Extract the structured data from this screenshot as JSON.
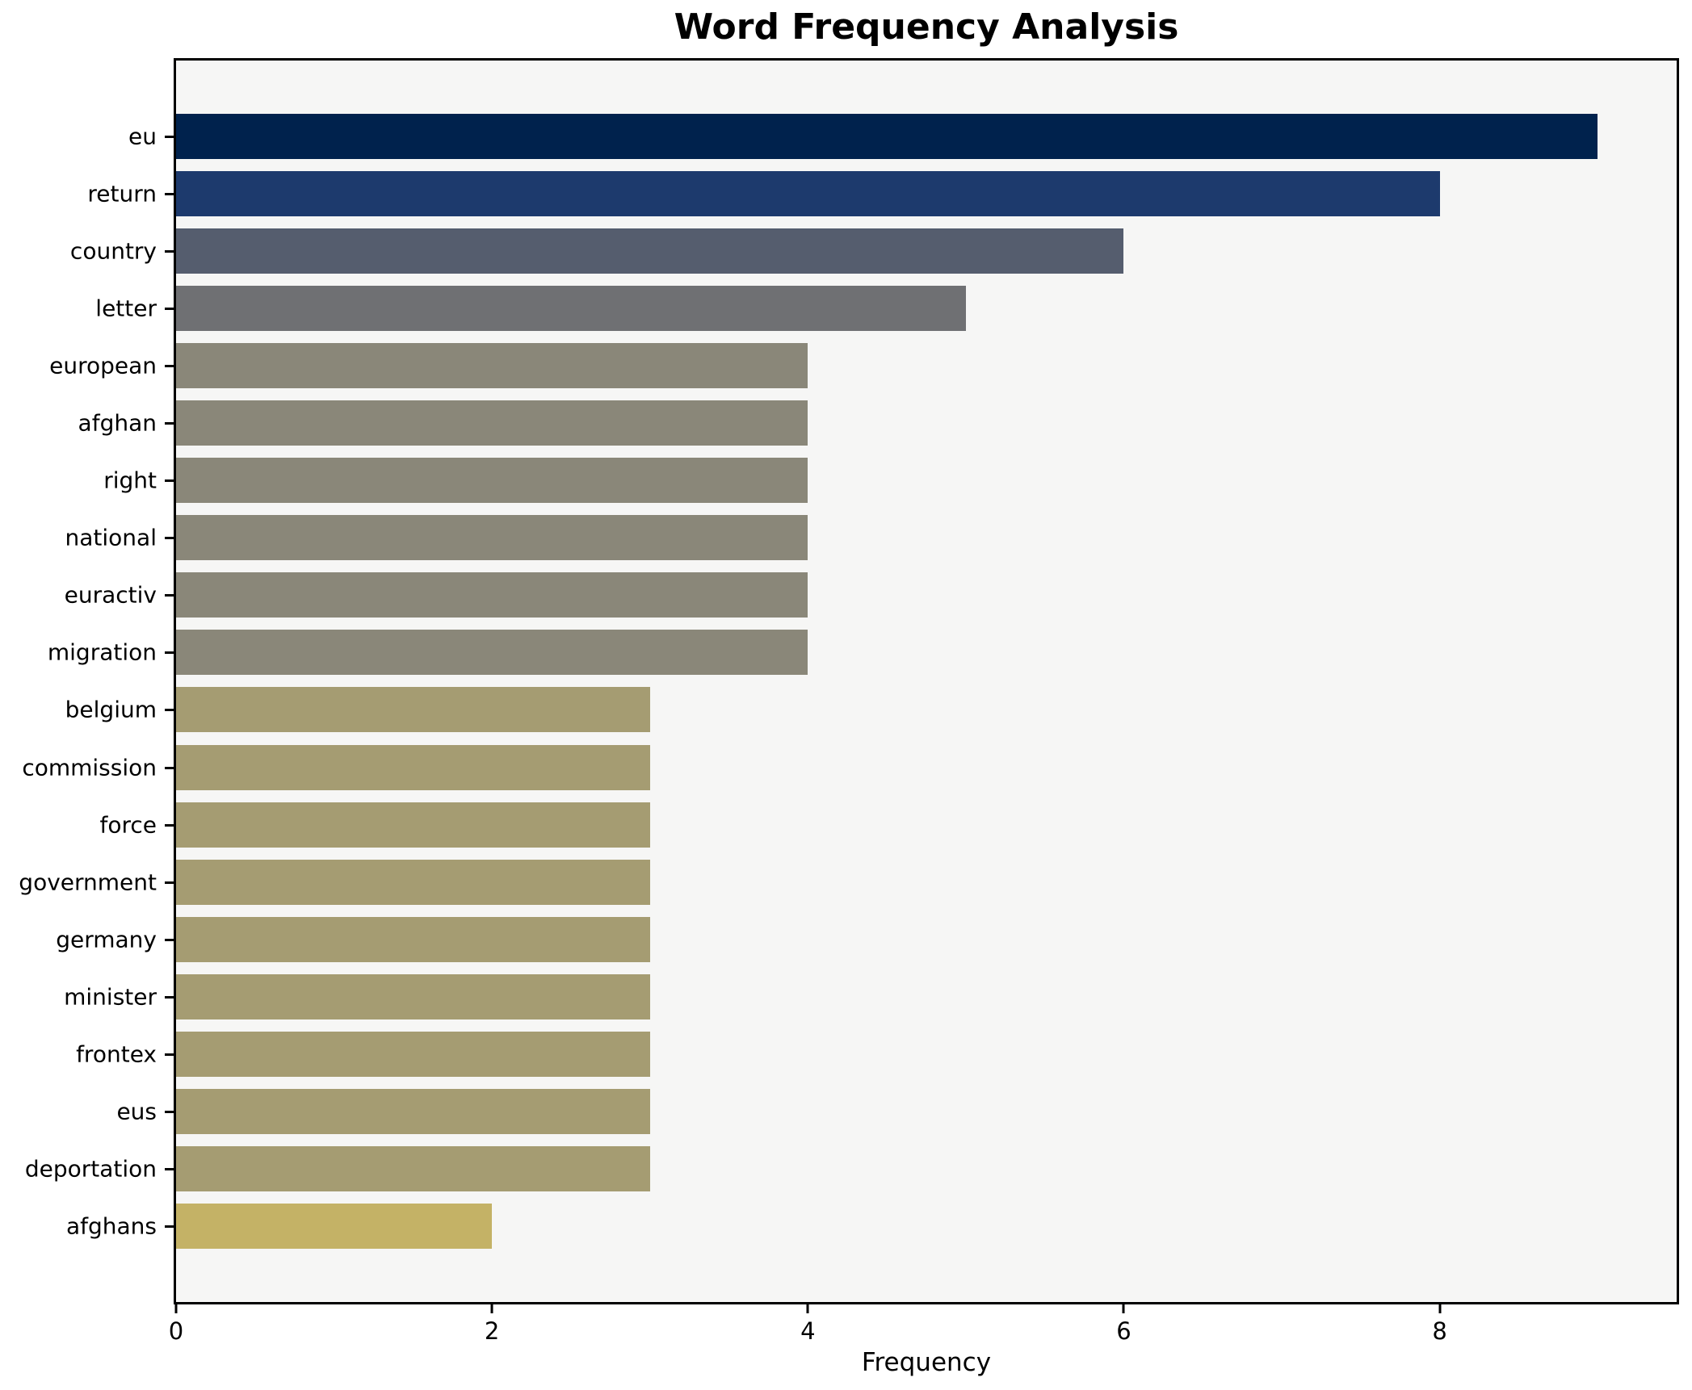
{
  "chart_data": {
    "type": "bar",
    "orientation": "horizontal",
    "title": "Word Frequency Analysis",
    "xlabel": "Frequency",
    "ylabel": "",
    "categories": [
      "eu",
      "return",
      "country",
      "letter",
      "european",
      "afghan",
      "right",
      "national",
      "euractiv",
      "migration",
      "belgium",
      "commission",
      "force",
      "government",
      "germany",
      "minister",
      "frontex",
      "eus",
      "deportation",
      "afghans"
    ],
    "values": [
      9,
      8,
      6,
      5,
      4,
      4,
      4,
      4,
      4,
      4,
      3,
      3,
      3,
      3,
      3,
      3,
      3,
      3,
      3,
      2
    ],
    "bar_colors": [
      "#00224d",
      "#1d3a6d",
      "#555d6e",
      "#6f7073",
      "#8a8779",
      "#8a8779",
      "#8a8779",
      "#8a8779",
      "#8a8779",
      "#8a8779",
      "#a59c72",
      "#a59c72",
      "#a59c72",
      "#a59c72",
      "#a59c72",
      "#a59c72",
      "#a59c72",
      "#a59c72",
      "#a59c72",
      "#c4b266"
    ],
    "xlim": [
      0,
      9.5
    ],
    "xticks": [
      0,
      2,
      4,
      6,
      8
    ],
    "grid": false,
    "legend": null,
    "plot_background": "#f6f6f5",
    "figure_background": "#ffffff",
    "axis_color": "#000000",
    "text_color": "#000000"
  }
}
